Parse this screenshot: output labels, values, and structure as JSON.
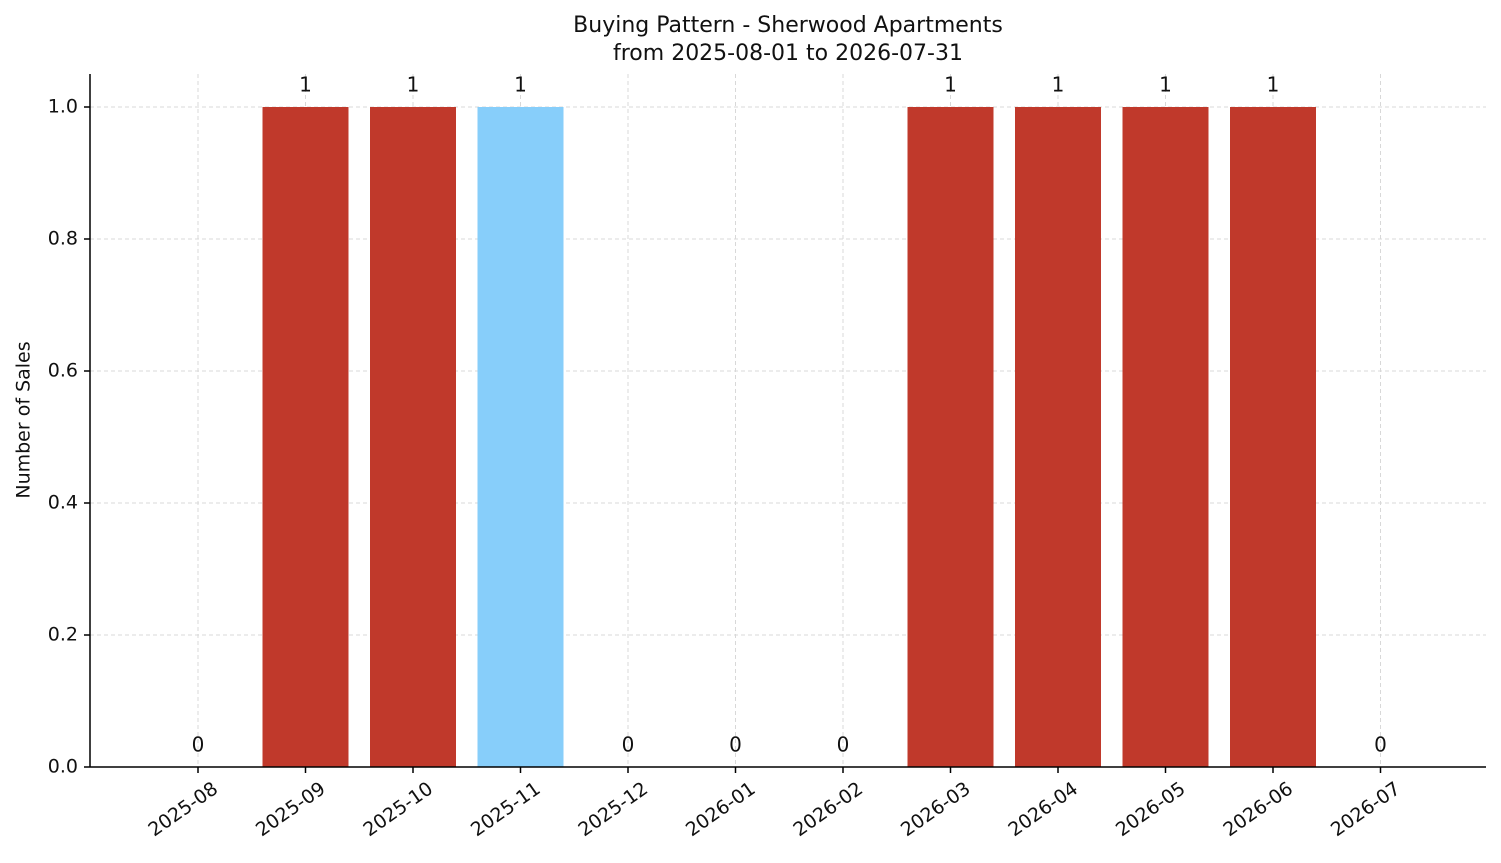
{
  "chart_data": {
    "type": "bar",
    "title": "Buying Pattern - Sherwood Apartments",
    "subtitle": "from 2025-08-01 to 2026-07-31",
    "y_label": "Number of Sales",
    "categories": [
      "2025-08",
      "2025-09",
      "2025-10",
      "2025-11",
      "2025-12",
      "2026-01",
      "2026-02",
      "2026-03",
      "2026-04",
      "2026-05",
      "2026-06",
      "2026-07"
    ],
    "values": [
      0,
      1,
      1,
      1,
      0,
      0,
      0,
      1,
      1,
      1,
      1,
      0
    ],
    "colors": [
      "#c0392b",
      "#c0392b",
      "#c0392b",
      "#87cefa",
      "#c0392b",
      "#c0392b",
      "#c0392b",
      "#c0392b",
      "#c0392b",
      "#c0392b",
      "#c0392b",
      "#c0392b"
    ],
    "ylim": [
      0,
      1.05
    ],
    "yticks": [
      {
        "value": 0,
        "label": "0.0"
      },
      0.2,
      0.4,
      0.6,
      0.8,
      {
        "value": 1,
        "label": "1.0"
      }
    ],
    "grid": true
  }
}
